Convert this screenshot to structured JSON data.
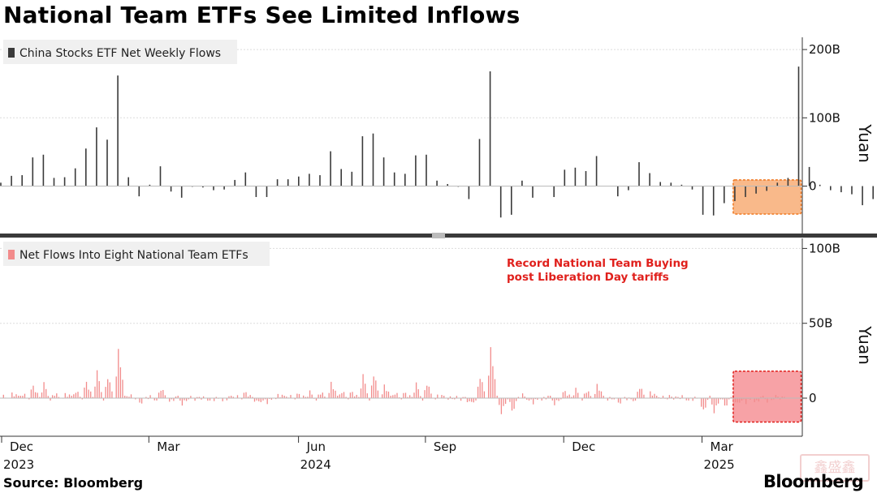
{
  "title": "National Team ETFs See Limited Inflows",
  "source": "Source: Bloomberg",
  "brand": "Bloomberg",
  "stamp_text": "鑫盛鑫",
  "x_labels": [
    {
      "month": "Dec",
      "year": "2023",
      "week": 0
    },
    {
      "month": "Mar",
      "year": "",
      "week": 13
    },
    {
      "month": "Jun",
      "year": "2024",
      "week": 26
    },
    {
      "month": "Sep",
      "year": "",
      "week": 39
    },
    {
      "month": "Dec",
      "year": "",
      "week": 52
    },
    {
      "month": "Mar",
      "year": "2025",
      "week": 65
    }
  ],
  "chart_data": [
    {
      "type": "bar",
      "legend": "China Stocks ETF Net Weekly Flows",
      "ylabel": "Yuan",
      "ylim": [
        -50,
        200
      ],
      "yticks": [
        {
          "v": 200,
          "label": "200B"
        },
        {
          "v": 100,
          "label": "100B"
        },
        {
          "v": 0,
          "label": "0"
        }
      ],
      "color": "#3a3a3a",
      "highlight": {
        "from_week": 69,
        "to_week": 75,
        "fill": "#f9b98a",
        "stroke": "#f07820"
      },
      "weekly_values": [
        5,
        15,
        16,
        42,
        46,
        12,
        13,
        26,
        55,
        86,
        68,
        162,
        13,
        -15,
        2,
        29,
        -8,
        -17,
        -1,
        -2,
        -6,
        -5,
        9,
        20,
        -16,
        -16,
        10,
        10,
        14,
        18,
        16,
        51,
        25,
        21,
        73,
        77,
        42,
        20,
        18,
        45,
        46,
        8,
        3,
        -1,
        -19,
        69,
        168,
        -46,
        -42,
        8,
        -17,
        0,
        -16,
        24,
        27,
        22,
        44,
        0,
        -15,
        -6,
        35,
        19,
        6,
        5,
        2,
        -5,
        -42,
        -43,
        -25,
        -22,
        -16,
        -11,
        -7,
        5,
        12,
        175,
        28,
        2,
        -6,
        -9,
        -12,
        -28,
        -19
      ]
    },
    {
      "type": "bar",
      "legend": "Net Flows Into Eight National Team ETFs",
      "ylabel": "Yuan",
      "ylim": [
        -25,
        100
      ],
      "yticks": [
        {
          "v": 100,
          "label": "100B"
        },
        {
          "v": 50,
          "label": "50B"
        },
        {
          "v": 0,
          "label": "0"
        }
      ],
      "color": "#f28b8b",
      "highlight": {
        "from_week": 69,
        "to_week": 75,
        "fill": "#f7a2a6",
        "stroke": "#e0201c"
      },
      "annotation": [
        "Record National Team Buying",
        "post Liberation Day tariffs"
      ],
      "annotation_color": "#e0201c",
      "daily_series_note_hidden": ""
    }
  ]
}
